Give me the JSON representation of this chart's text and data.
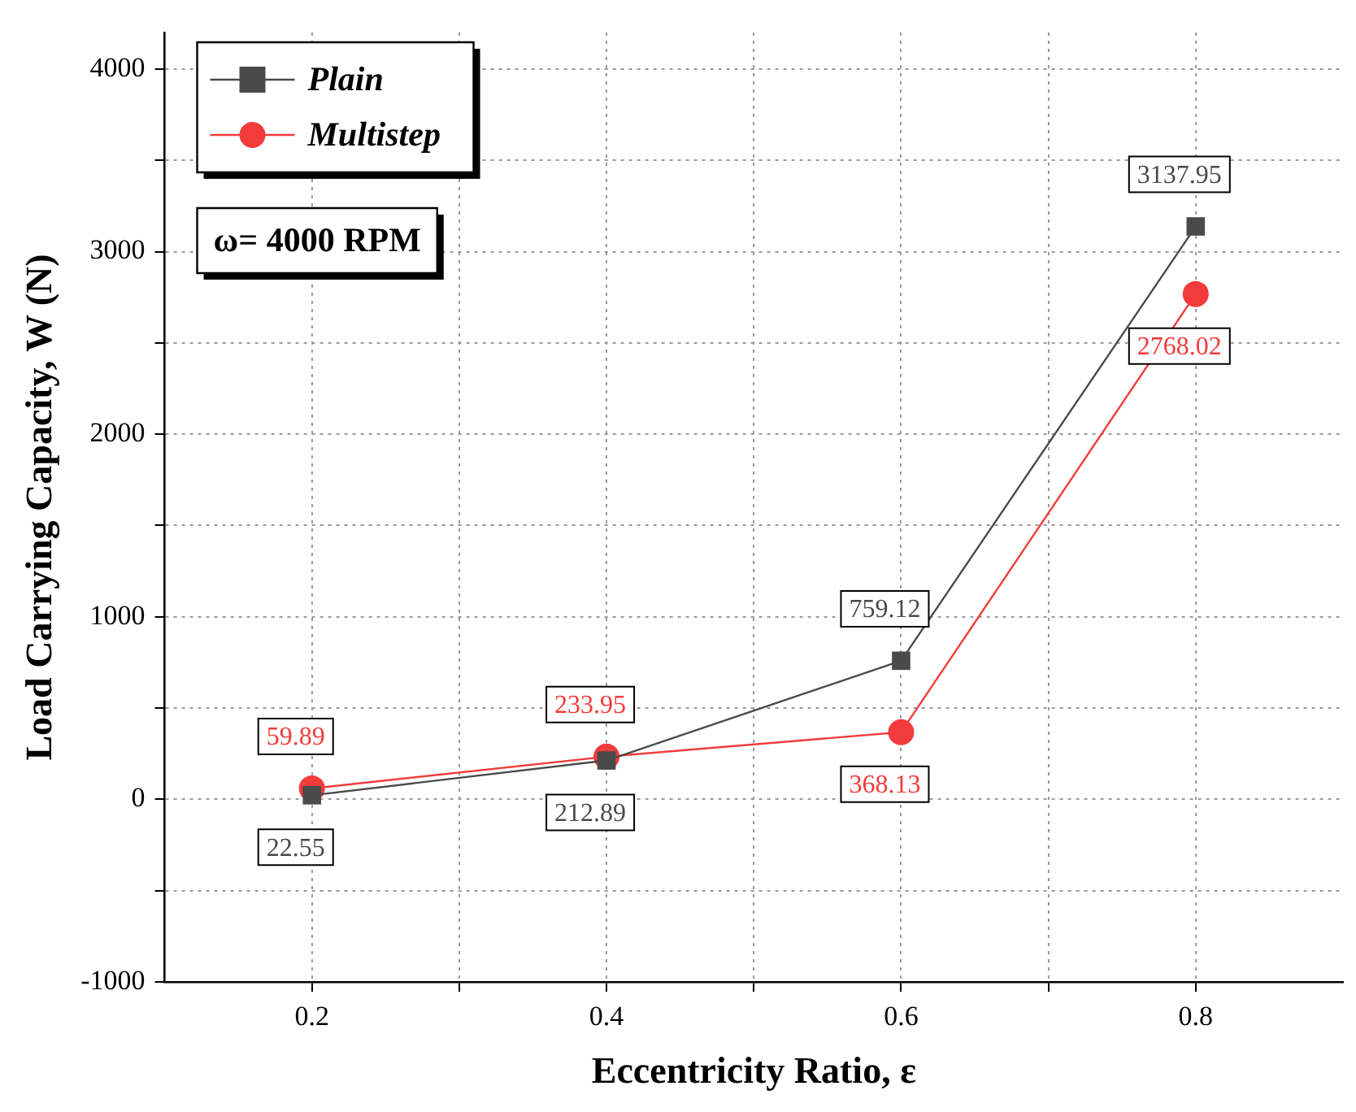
{
  "chart_data": {
    "type": "line",
    "xlabel": "Eccentricity Ratio, ε",
    "ylabel": "Load Carrying Capacity, W (N)",
    "x": [
      0.2,
      0.4,
      0.6,
      0.8
    ],
    "series": [
      {
        "name": "Plain",
        "color": "#4a4a4a",
        "marker": "square",
        "values": [
          22.55,
          212.89,
          759.12,
          3137.95
        ]
      },
      {
        "name": "Multistep",
        "color": "#f23b3b",
        "marker": "circle",
        "values": [
          59.89,
          233.95,
          368.13,
          2768.02
        ]
      }
    ],
    "xlim": [
      0.1,
      0.9
    ],
    "xticks": [
      0.2,
      {
        "value": 0.3,
        "label": null
      },
      0.4,
      {
        "value": 0.5,
        "label": null
      },
      0.6,
      {
        "value": 0.7,
        "label": null
      },
      0.8
    ],
    "ylim": [
      -1000,
      4200
    ],
    "yticks": [
      -1000,
      {
        "value": -500,
        "label": null
      },
      0,
      {
        "value": 500,
        "label": null
      },
      1000,
      {
        "value": 1500,
        "label": null
      },
      2000,
      {
        "value": 2500,
        "label": null
      },
      3000,
      {
        "value": 3500,
        "label": null
      },
      4000
    ],
    "grid": true,
    "legend": "top left",
    "data_labels": true,
    "line_style": "solid",
    "annotations": [
      "ω= 4000 RPM"
    ]
  }
}
